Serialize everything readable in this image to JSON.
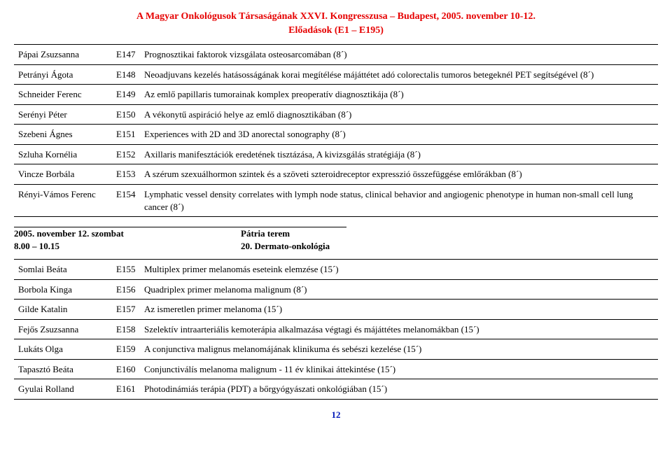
{
  "header": {
    "line1": "A Magyar Onkológusok Társaságának XXVI. Kongresszusa – Budapest, 2005. november 10-12.",
    "line2": "Előadások (E1 – E195)"
  },
  "table1": {
    "rows": [
      {
        "name": "Pápai Zsuzsanna",
        "code": "E147",
        "title": "Prognosztikai faktorok vizsgálata osteosarcomában (8´)"
      },
      {
        "name": "Petrányi Ágota",
        "code": "E148",
        "title": "Neoadjuvans kezelés hatásosságának korai megítélése májáttétet adó colorectalis tumoros betegeknél PET segítségével (8´)"
      },
      {
        "name": "Schneider Ferenc",
        "code": "E149",
        "title": "Az emlő papillaris tumorainak komplex preoperatív diagnosztikája (8´)"
      },
      {
        "name": "Serényi Péter",
        "code": "E150",
        "title": "A vékonytű aspiráció helye az emlő diagnosztikában (8´)"
      },
      {
        "name": "Szebeni Ágnes",
        "code": "E151",
        "title": "Experiences with 2D and 3D anorectal sonography (8´)"
      },
      {
        "name": "Szluha Kornélia",
        "code": "E152",
        "title": "Axillaris manifesztációk eredetének tisztázása, A kivizsgálás stratégiája (8´)"
      },
      {
        "name": "Vincze Borbála",
        "code": "E153",
        "title": "A szérum szexuálhormon szintek és a szöveti szteroidreceptor expresszió összefüggése emlőrákban (8´)"
      },
      {
        "name": "Rényi-Vámos Ferenc",
        "code": "E154",
        "title": "Lymphatic vessel density correlates with lymph node status, clinical behavior and angiogenic phenotype in human non-small cell lung cancer (8´)"
      }
    ]
  },
  "session": {
    "left1": "2005. november 12. szombat",
    "left2": "8.00 – 10.15",
    "right1": "Pátria terem",
    "right2": "20. Dermato-onkológia"
  },
  "table2": {
    "rows": [
      {
        "name": "Somlai Beáta",
        "code": "E155",
        "title": "Multiplex primer melanomás eseteink elemzése (15´)"
      },
      {
        "name": "Borbola Kinga",
        "code": "E156",
        "title": "Quadriplex primer melanoma malignum (8´)"
      },
      {
        "name": "Gilde Katalin",
        "code": "E157",
        "title": "Az ismeretlen primer melanoma (15´)"
      },
      {
        "name": "Fejős Zsuzsanna",
        "code": "E158",
        "title": "Szelektív intraarteriális kemoterápia alkalmazása végtagi és májáttétes melanomákban (15´)"
      },
      {
        "name": "Lukáts Olga",
        "code": "E159",
        "title": "A conjunctiva malignus melanomájának klinikuma és sebészi kezelése (15´)"
      },
      {
        "name": "Tapasztó Beáta",
        "code": "E160",
        "title": "Conjunctiválís melanoma malignum - 11 év klinikai áttekintése (15´)"
      },
      {
        "name": "Gyulai Rolland",
        "code": "E161",
        "title": "Photodinámiás terápia (PDT) a bőrgyógyászati onkológiában (15´)"
      }
    ]
  },
  "page_number": "12"
}
